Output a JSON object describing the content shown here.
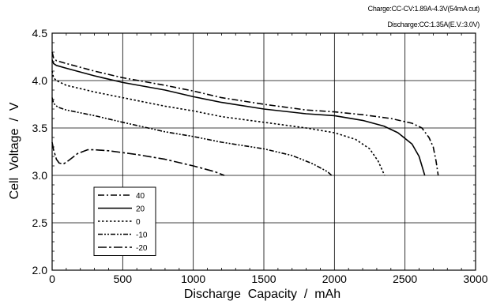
{
  "chart_data": {
    "type": "line",
    "title": "",
    "annotations": [
      "Charge:CC-CV:1.89A-4.3V(54mA cut)",
      "Discharge:CC:1.35A(E.V.:3.0V)"
    ],
    "xlabel": "Discharge  Capacity  /  mAh",
    "ylabel": "Cell  Voltage  /  V",
    "xlim": [
      0,
      3000
    ],
    "ylim": [
      2.0,
      4.5
    ],
    "x_ticks": [
      "0",
      "500",
      "1000",
      "1500",
      "2000",
      "2500",
      "3000"
    ],
    "y_ticks": [
      "2.0",
      "2.5",
      "3.0",
      "3.5",
      "4.0",
      "4.5"
    ],
    "grid": true,
    "legend_position": "bottom-left",
    "series": [
      {
        "name": "40",
        "dash": "dash-dot",
        "points": [
          [
            0,
            4.3
          ],
          [
            10,
            4.24
          ],
          [
            30,
            4.21
          ],
          [
            100,
            4.18
          ],
          [
            300,
            4.1
          ],
          [
            500,
            4.03
          ],
          [
            800,
            3.95
          ],
          [
            1000,
            3.89
          ],
          [
            1200,
            3.82
          ],
          [
            1500,
            3.75
          ],
          [
            1800,
            3.69
          ],
          [
            2000,
            3.67
          ],
          [
            2200,
            3.64
          ],
          [
            2400,
            3.6
          ],
          [
            2550,
            3.55
          ],
          [
            2620,
            3.5
          ],
          [
            2670,
            3.4
          ],
          [
            2700,
            3.3
          ],
          [
            2720,
            3.15
          ],
          [
            2735,
            3.0
          ]
        ]
      },
      {
        "name": "20",
        "dash": "solid",
        "points": [
          [
            0,
            4.22
          ],
          [
            10,
            4.18
          ],
          [
            30,
            4.16
          ],
          [
            100,
            4.13
          ],
          [
            300,
            4.05
          ],
          [
            500,
            3.98
          ],
          [
            800,
            3.9
          ],
          [
            1000,
            3.83
          ],
          [
            1200,
            3.77
          ],
          [
            1500,
            3.7
          ],
          [
            1800,
            3.65
          ],
          [
            2000,
            3.63
          ],
          [
            2200,
            3.58
          ],
          [
            2350,
            3.52
          ],
          [
            2450,
            3.45
          ],
          [
            2550,
            3.33
          ],
          [
            2600,
            3.2
          ],
          [
            2630,
            3.05
          ],
          [
            2640,
            3.0
          ]
        ]
      },
      {
        "name": "0",
        "dash": "dotted",
        "points": [
          [
            0,
            4.1
          ],
          [
            10,
            4.03
          ],
          [
            30,
            4.0
          ],
          [
            100,
            3.95
          ],
          [
            300,
            3.88
          ],
          [
            500,
            3.82
          ],
          [
            800,
            3.73
          ],
          [
            1000,
            3.68
          ],
          [
            1200,
            3.62
          ],
          [
            1500,
            3.56
          ],
          [
            1800,
            3.5
          ],
          [
            2000,
            3.45
          ],
          [
            2150,
            3.38
          ],
          [
            2250,
            3.28
          ],
          [
            2310,
            3.15
          ],
          [
            2340,
            3.05
          ],
          [
            2355,
            3.0
          ]
        ]
      },
      {
        "name": "-10",
        "dash": "dash-dot-dot",
        "points": [
          [
            0,
            3.82
          ],
          [
            10,
            3.76
          ],
          [
            40,
            3.72
          ],
          [
            100,
            3.69
          ],
          [
            300,
            3.63
          ],
          [
            500,
            3.56
          ],
          [
            800,
            3.46
          ],
          [
            1000,
            3.41
          ],
          [
            1200,
            3.35
          ],
          [
            1500,
            3.28
          ],
          [
            1700,
            3.21
          ],
          [
            1850,
            3.12
          ],
          [
            1950,
            3.04
          ],
          [
            1980,
            3.0
          ]
        ]
      },
      {
        "name": "-20",
        "dash": "long-dash-dot",
        "points": [
          [
            0,
            3.35
          ],
          [
            10,
            3.27
          ],
          [
            30,
            3.17
          ],
          [
            50,
            3.13
          ],
          [
            80,
            3.12
          ],
          [
            120,
            3.16
          ],
          [
            180,
            3.23
          ],
          [
            250,
            3.27
          ],
          [
            300,
            3.27
          ],
          [
            400,
            3.26
          ],
          [
            600,
            3.22
          ],
          [
            800,
            3.17
          ],
          [
            1000,
            3.1
          ],
          [
            1150,
            3.04
          ],
          [
            1220,
            3.0
          ]
        ]
      }
    ]
  }
}
